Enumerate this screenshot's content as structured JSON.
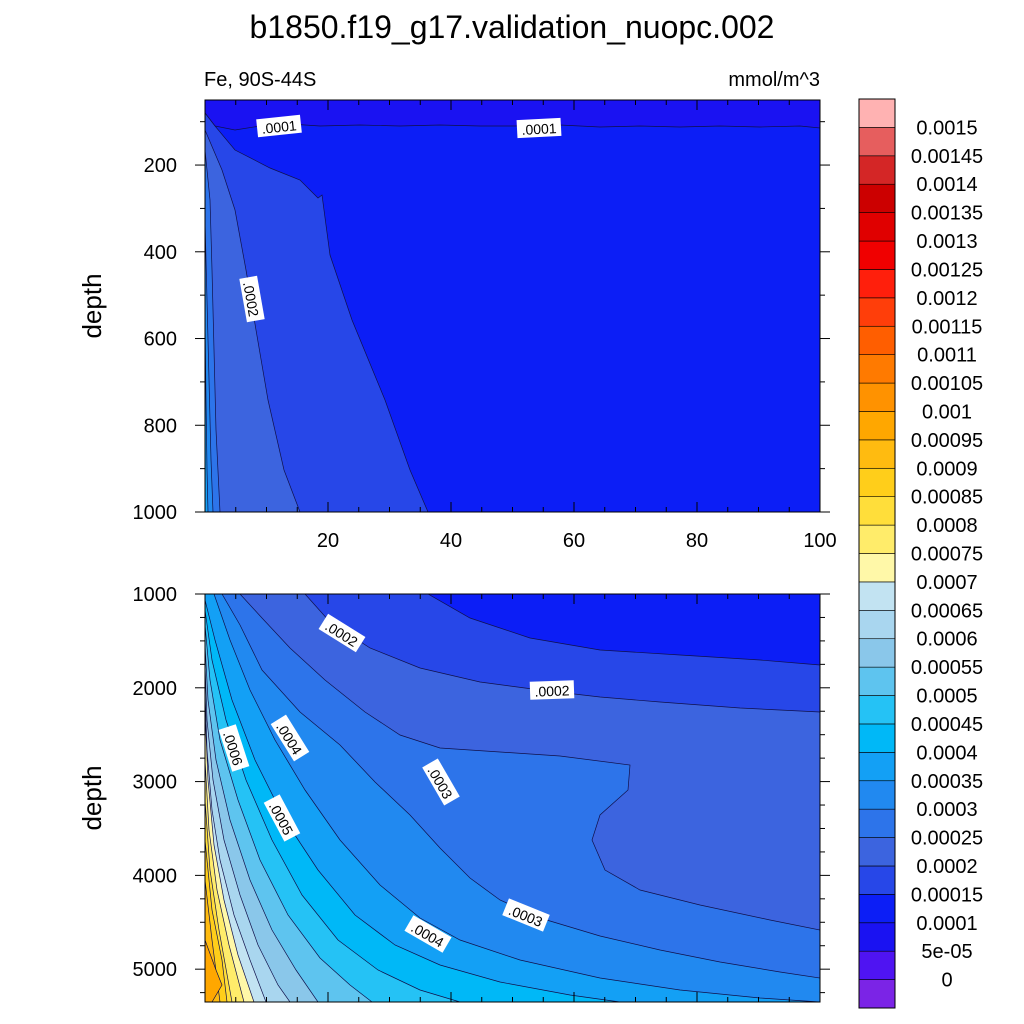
{
  "chart_data": {
    "type": "contour",
    "title": "b1850.f19_g17.validation_nuopc.002",
    "left_subtitle": "Fe, 90S-44S",
    "right_subtitle": "mmol/m^3",
    "xlim": [
      0,
      100
    ],
    "x_ticks": [
      "20",
      "40",
      "60",
      "80",
      "100"
    ],
    "ylabel": "depth",
    "colors": {
      "background": "#ffffff",
      "levels": [
        "#7b24e6",
        "#4f14f2",
        "#1a12f2",
        "#0c1ef6",
        "#2747e8",
        "#3c64df",
        "#2d74ea",
        "#2189f0",
        "#13a0f5",
        "#00b8f7",
        "#25c2f5",
        "#5ec4ef",
        "#8ac7ea",
        "#a9d6ef",
        "#c2e3f2",
        "#fff8a8",
        "#ffec6a",
        "#ffde3a",
        "#ffce1a",
        "#ffbb10",
        "#ffa700",
        "#ff9200",
        "#ff7a00",
        "#ff5e00",
        "#ff3e0a",
        "#ff1f0c",
        "#f00000",
        "#e00000",
        "#cc0000",
        "#d42626",
        "#e65e5e",
        "#ffb2b2"
      ]
    },
    "panels": [
      {
        "name": "upper",
        "ylim": [
          50,
          1000
        ],
        "y_ticks": [
          "200",
          "400",
          "600",
          "800",
          "1000"
        ],
        "contour_labels": [
          ".0001",
          ".0001",
          ".0002"
        ]
      },
      {
        "name": "lower",
        "ylim": [
          1000,
          5350
        ],
        "y_ticks": [
          "1000",
          "2000",
          "3000",
          "4000",
          "5000"
        ],
        "contour_labels": [
          ".0002",
          ".0002",
          ".0003",
          ".0003",
          ".0004",
          ".0004",
          ".0005",
          ".0006"
        ]
      }
    ],
    "colorbar": {
      "labels": [
        "0.0015",
        "0.00145",
        "0.0014",
        "0.00135",
        "0.0013",
        "0.00125",
        "0.0012",
        "0.00115",
        "0.0011",
        "0.00105",
        "0.001",
        "0.00095",
        "0.0009",
        "0.00085",
        "0.0008",
        "0.00075",
        "0.0007",
        "0.00065",
        "0.0006",
        "0.00055",
        "0.0005",
        "0.00045",
        "0.0004",
        "0.00035",
        "0.0003",
        "0.00025",
        "0.0002",
        "0.00015",
        "0.0001",
        "5e-05",
        "0"
      ]
    }
  }
}
